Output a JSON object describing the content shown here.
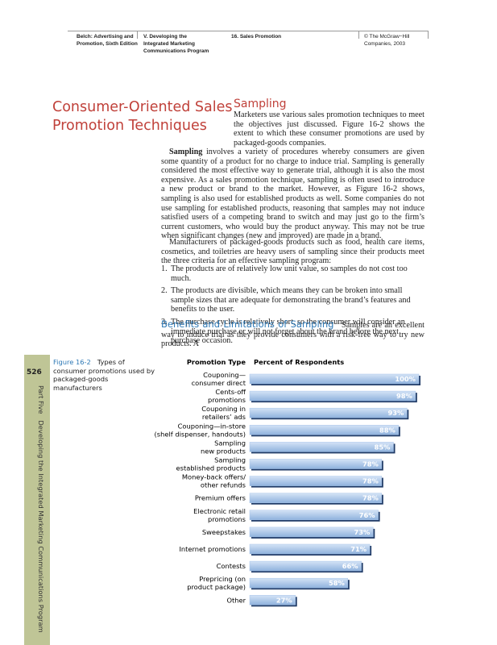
{
  "header": {
    "book": "Belch: Advertising and\nPromotion, Sixth Edition",
    "part": "V. Developing the\nIntegrated Marketing\nCommunications Program",
    "chapter": "16. Sales Promotion",
    "publisher": "© The McGraw−Hill\nCompanies, 2003"
  },
  "section_title": "Consumer-Oriented Sales\nPromotion Techniques",
  "heading": "Sampling",
  "intro": "Marketers use various sales promotion techniques to meet the objectives just discussed. Figure 16-2 shows the extent to which these consumer promotions are used by packaged-goods companies.",
  "p2_lead": "Sampling",
  "p2": " involves a variety of procedures whereby consumers are given some quantity of a product for no charge to induce trial. Sampling is generally considered the most effective way to generate trial, although it is also the most expensive. As a sales promotion technique, sampling is often used to introduce a new product or brand to the market. However, as Figure 16-2 shows, sampling is also used for established products as well. Some companies do not use sampling for established products, reasoning that samples may not induce satisfied users of a competing brand to switch and may just go to the firm’s current customers, who would buy the product anyway. This may not be true when significant changes (new and improved) are made in a brand.",
  "p3": "Manufacturers of packaged-goods products such as food, health care items, cosmetics, and toiletries are heavy users of sampling since their products meet the three criteria for an effective sampling program:",
  "list": [
    {
      "num": "1.",
      "text": "The products are of relatively low unit value, so samples do not cost too much."
    },
    {
      "num": "2.",
      "text": "The products are divisible, which means they can be broken into small sample sizes that are adequate for demonstrating the brand’s features and benefits to the user."
    },
    {
      "num": "3.",
      "text": "The purchase cycle is relatively short, so the consumer will consider an immediate purchase or will not forget about the brand before the next purchase occasion."
    }
  ],
  "subheading": "Benefits and Limitations of Sampling",
  "p4": "Samples are an excellent way to induce trial as they provide consumers with a risk-free way to try new products. A",
  "sidebar": {
    "page": "526",
    "running": "Part Five   Developing the Integrated Marketing Communications Program"
  },
  "figure": {
    "type": "bar",
    "label": "Figure 16-2",
    "caption": "Types of consumer promotions used by packaged-goods manufacturers",
    "category_header": "Promotion Type",
    "value_header": "Percent of Respondents",
    "color": "#a9c6ea",
    "categories": [
      "Couponing—\nconsumer direct",
      "Cents-off\npromotions",
      "Couponing in\nretailers’ ads",
      "Couponing—in-store\n(shelf dispenser, handouts)",
      "Sampling\nnew products",
      "Sampling\nestablished products",
      "Money-back offers/\nother refunds",
      "Premium offers",
      "Electronic retail\npromotions",
      "Sweepstakes",
      "Internet promotions",
      "Contests",
      "Prepricing (on\nproduct package)",
      "Other"
    ],
    "values": [
      100,
      98,
      93,
      88,
      85,
      78,
      78,
      78,
      76,
      73,
      71,
      66,
      58,
      27
    ],
    "value_labels": [
      "100%",
      "98%",
      "93%",
      "88%",
      "85%",
      "78%",
      "78%",
      "78%",
      "76%",
      "73%",
      "71%",
      "66%",
      "58%",
      "27%"
    ]
  }
}
